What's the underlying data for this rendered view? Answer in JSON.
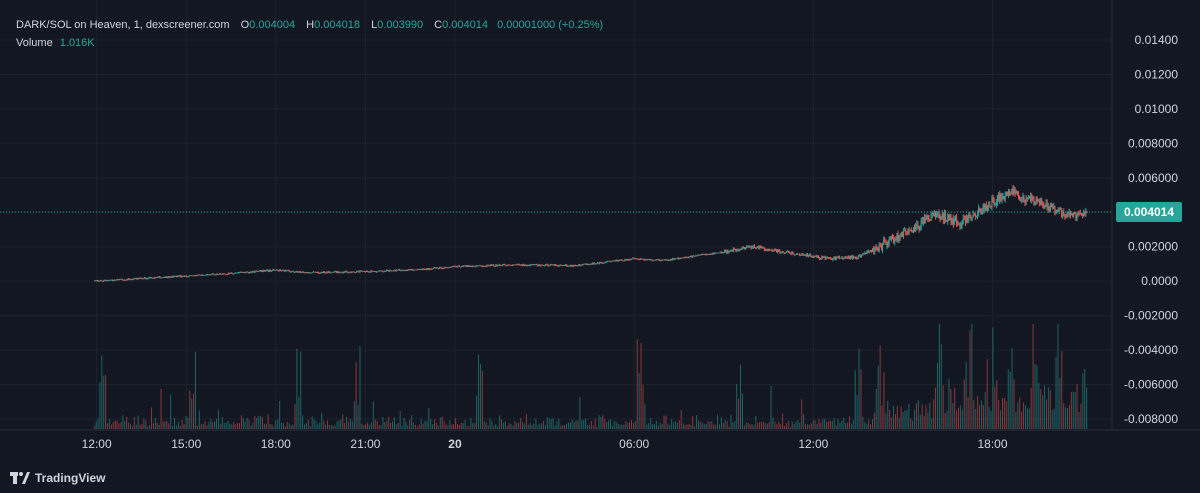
{
  "legend": {
    "title": "DARK/SOL on Heaven, 1, dexscreener.com",
    "o_label": "O",
    "o_value": "0.004004",
    "h_label": "H",
    "h_value": "0.004018",
    "l_label": "L",
    "l_value": "0.003990",
    "c_label": "C",
    "c_value": "0.004014",
    "change": "0.00001000 (+0.25%)",
    "volume_label": "Volume",
    "volume_value": "1.016K"
  },
  "footer": {
    "brand": "TradingView",
    "icon": "tradingview-logo-icon"
  },
  "colors": {
    "background": "#131722",
    "up": "#26a69a",
    "down": "#ef5350",
    "grid": "#1e222d",
    "text": "#d1d4dc",
    "last_price_badge": "#26a69a"
  },
  "chart_data": {
    "type": "candlestick",
    "title": "DARK/SOL on Heaven, 1, dexscreener.com",
    "y_ticks": [
      "0.01400",
      "0.01200",
      "0.01000",
      "0.008000",
      "0.006000",
      "0.004000",
      "0.002000",
      "0.0000",
      "-0.002000",
      "-0.004000",
      "-0.006000",
      "-0.008000"
    ],
    "y_tick_values": [
      0.014,
      0.012,
      0.01,
      0.008,
      0.006,
      0.004,
      0.002,
      0.0,
      -0.002,
      -0.004,
      -0.006,
      -0.008
    ],
    "ylim": [
      -0.0088,
      0.0152
    ],
    "x_ticks": [
      "12:00",
      "15:00",
      "18:00",
      "21:00",
      "20",
      "06:00",
      "12:00",
      "18:00"
    ],
    "x_tick_hours": [
      12,
      15,
      18,
      21,
      24,
      30,
      36,
      42
    ],
    "xlim_hours": [
      9.5,
      45.6
    ],
    "last_price": "0.004014",
    "last_price_value": 0.004014,
    "price_path": [
      [
        11.9,
        2e-05
      ],
      [
        13.0,
        0.0001
      ],
      [
        15.0,
        0.0003
      ],
      [
        16.5,
        0.00045
      ],
      [
        18.0,
        0.00065
      ],
      [
        19.0,
        0.0005
      ],
      [
        21.0,
        0.00055
      ],
      [
        23.0,
        0.0007
      ],
      [
        24.0,
        0.00085
      ],
      [
        26.0,
        0.00095
      ],
      [
        28.0,
        0.0009
      ],
      [
        30.0,
        0.0013
      ],
      [
        31.0,
        0.0012
      ],
      [
        33.0,
        0.0017
      ],
      [
        34.0,
        0.002
      ],
      [
        35.0,
        0.0017
      ],
      [
        36.5,
        0.0013
      ],
      [
        37.5,
        0.0014
      ],
      [
        38.5,
        0.0023
      ],
      [
        39.5,
        0.0032
      ],
      [
        40.0,
        0.0039
      ],
      [
        41.0,
        0.0034
      ],
      [
        42.0,
        0.0046
      ],
      [
        42.7,
        0.0053
      ],
      [
        43.0,
        0.0048
      ],
      [
        43.5,
        0.0046
      ],
      [
        44.3,
        0.004
      ],
      [
        44.8,
        0.0038
      ],
      [
        45.2,
        0.00401
      ]
    ],
    "volume_peak_hours": [
      12.2,
      15.2,
      18.7,
      20.7,
      24.8,
      30.2,
      33.5,
      37.5,
      38.2,
      40.2,
      41.2,
      42.1,
      42.6,
      43.4,
      44.2,
      45.0
    ]
  }
}
